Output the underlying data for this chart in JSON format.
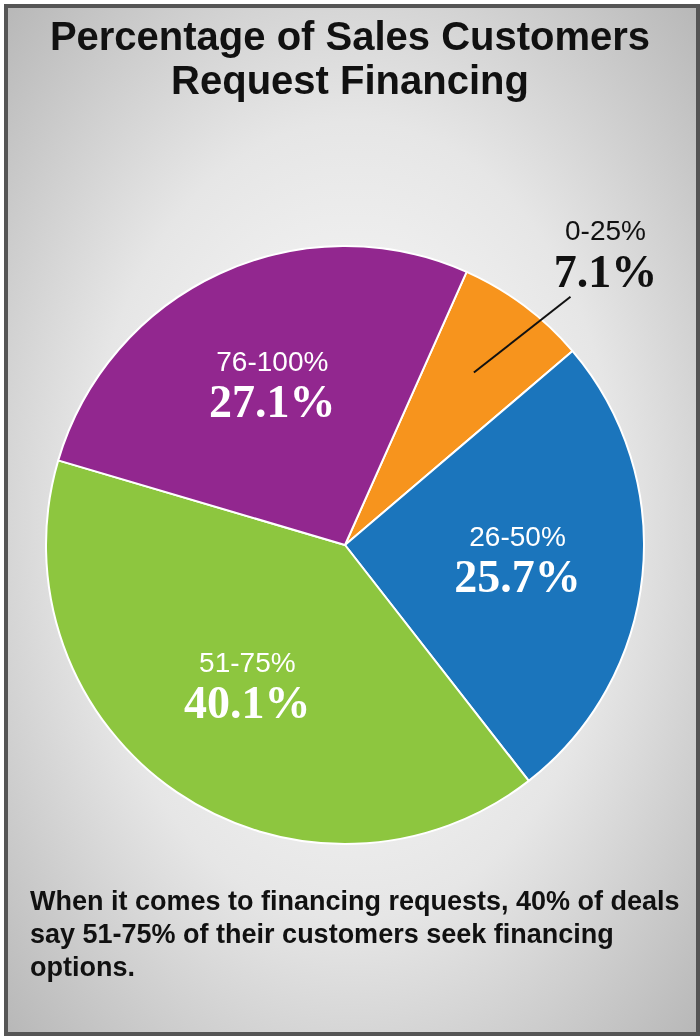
{
  "chart_data": {
    "type": "pie",
    "title": "Percentage of Sales Customers Request Financing",
    "categories": [
      "0-25%",
      "26-50%",
      "51-75%",
      "76-100%"
    ],
    "values": [
      7.1,
      25.7,
      40.1,
      27.1
    ],
    "colors": [
      "#f7941d",
      "#1b75bc",
      "#8dc63f",
      "#92278f"
    ],
    "value_labels": [
      "7.1%",
      "25.7%",
      "40.1%",
      "27.1%"
    ],
    "legend": false,
    "annotations": [
      "When it comes to financing requests, 40% of deals say 51-75% of their customers seek financing options."
    ]
  }
}
